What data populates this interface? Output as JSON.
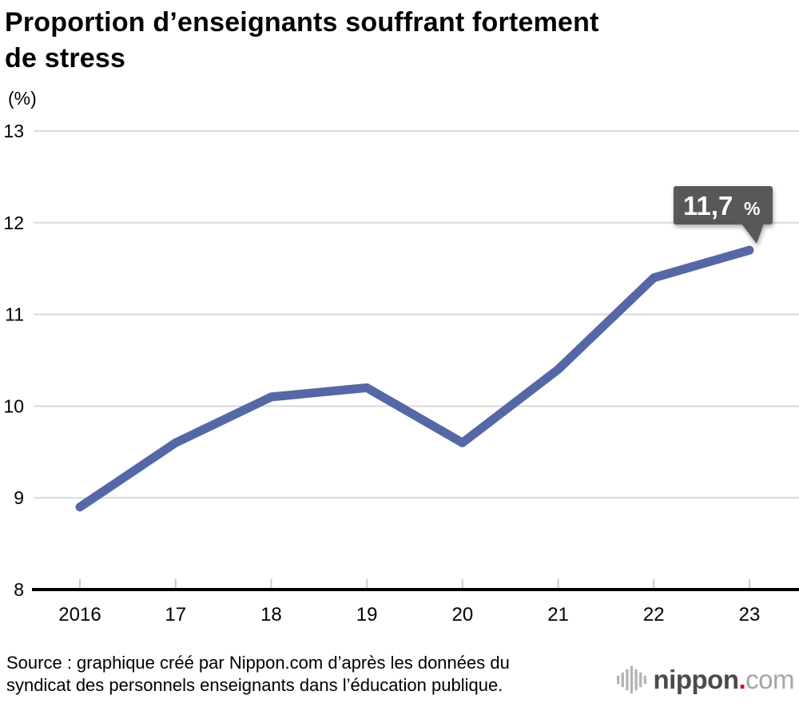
{
  "page": {
    "title_lines": [
      "Proportion d’enseignants souffrant fortement",
      "de stress"
    ],
    "y_axis_unit": "(%)",
    "source_lines": [
      "Source : graphique créé par Nippon.com d’après les données du",
      "syndicat des personnels enseignants dans l’éducation publique."
    ],
    "logo": {
      "brand": "nippon",
      "dot": ".",
      "tld": "com",
      "brand_color": "#4a4a4a",
      "dot_color": "#e60012",
      "tld_color": "#a5a5a5",
      "wave_icon_color": "#b5b5b5"
    }
  },
  "chart_data": {
    "type": "line",
    "title": "Proportion d’enseignants souffrant fortement de stress",
    "xlabel": "",
    "ylabel": "(%)",
    "x": [
      "2016",
      "17",
      "18",
      "19",
      "20",
      "21",
      "22",
      "23"
    ],
    "values": [
      8.9,
      9.6,
      10.1,
      10.2,
      9.6,
      10.4,
      11.4,
      11.7
    ],
    "ylim": [
      8,
      13
    ],
    "y_ticks": [
      8,
      9,
      10,
      11,
      12,
      13
    ],
    "grid": true,
    "legend": false,
    "line_color": "#5667a6",
    "gridline_color": "#d9d9d9",
    "axis_color": "#000000",
    "tick_color": "#c9c9c9",
    "annotation": {
      "year": "23",
      "value_label": "11,7",
      "unit_label": "%",
      "bg_color": "#58585a",
      "text_color": "#ffffff"
    }
  }
}
